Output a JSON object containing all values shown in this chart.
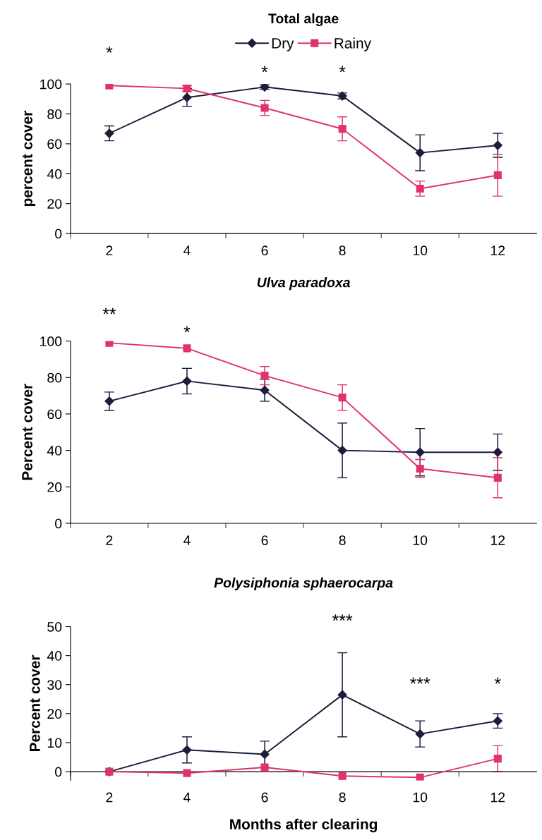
{
  "chart_data": [
    {
      "type": "line",
      "title": "Total algae",
      "ylabel": "percent cover",
      "categories": [
        "2",
        "4",
        "6",
        "8",
        "10",
        "12"
      ],
      "ylim": [
        0,
        100
      ],
      "yticks": [
        0,
        20,
        40,
        60,
        80,
        100
      ],
      "grid": false,
      "legend": "top",
      "series": [
        {
          "name": "Dry",
          "color": "#1c1c3c",
          "marker": "diamond",
          "values": [
            67,
            91,
            98,
            92,
            54,
            59
          ],
          "errors": [
            5,
            6,
            1.5,
            2,
            12,
            8
          ]
        },
        {
          "name": "Rainy",
          "color": "#e0336e",
          "marker": "square",
          "values": [
            99,
            97,
            84,
            70,
            30,
            39
          ],
          "errors": [
            null,
            2,
            5,
            8,
            5,
            14
          ]
        }
      ],
      "annotations": [
        "*",
        "*",
        "*"
      ]
    },
    {
      "type": "line",
      "title": "Ulva paradoxa",
      "ylabel": "Percent cover",
      "categories": [
        "2",
        "4",
        "6",
        "8",
        "10",
        "12"
      ],
      "ylim": [
        0,
        100
      ],
      "yticks": [
        0,
        20,
        40,
        60,
        80,
        100
      ],
      "grid": false,
      "series": [
        {
          "color": "#1c1c3c",
          "marker": "diamond",
          "values": [
            67,
            78,
            73,
            40,
            39,
            39
          ],
          "errors": [
            5,
            7,
            6,
            15,
            13,
            10
          ]
        },
        {
          "color": "#e0336e",
          "marker": "square",
          "values": [
            99,
            96,
            81,
            69,
            30,
            25
          ],
          "errors": [
            null,
            null,
            5,
            7,
            5,
            11
          ]
        }
      ],
      "annotations": [
        "**",
        "*"
      ]
    },
    {
      "type": "line",
      "title": "Polysiphonia sphaerocarpa",
      "ylabel": "Percent cover",
      "xlabel": "Months after clearing",
      "categories": [
        "2",
        "4",
        "6",
        "8",
        "10",
        "12"
      ],
      "ylim": [
        -3,
        50
      ],
      "yticks": [
        0,
        10,
        20,
        30,
        40,
        50
      ],
      "grid": false,
      "series": [
        {
          "color": "#1c1c3c",
          "marker": "diamond",
          "values": [
            0,
            7.5,
            6,
            26.5,
            13,
            17.5
          ],
          "errors": [
            null,
            4.5,
            4.5,
            14.5,
            4.5,
            2.5
          ]
        },
        {
          "color": "#e0336e",
          "marker": "square",
          "values": [
            0,
            -0.5,
            1.5,
            -1.5,
            -2,
            4.5
          ],
          "errors": [
            null,
            null,
            null,
            null,
            null,
            4.5
          ]
        }
      ],
      "annotations": [
        "***",
        "***",
        "*"
      ]
    }
  ]
}
